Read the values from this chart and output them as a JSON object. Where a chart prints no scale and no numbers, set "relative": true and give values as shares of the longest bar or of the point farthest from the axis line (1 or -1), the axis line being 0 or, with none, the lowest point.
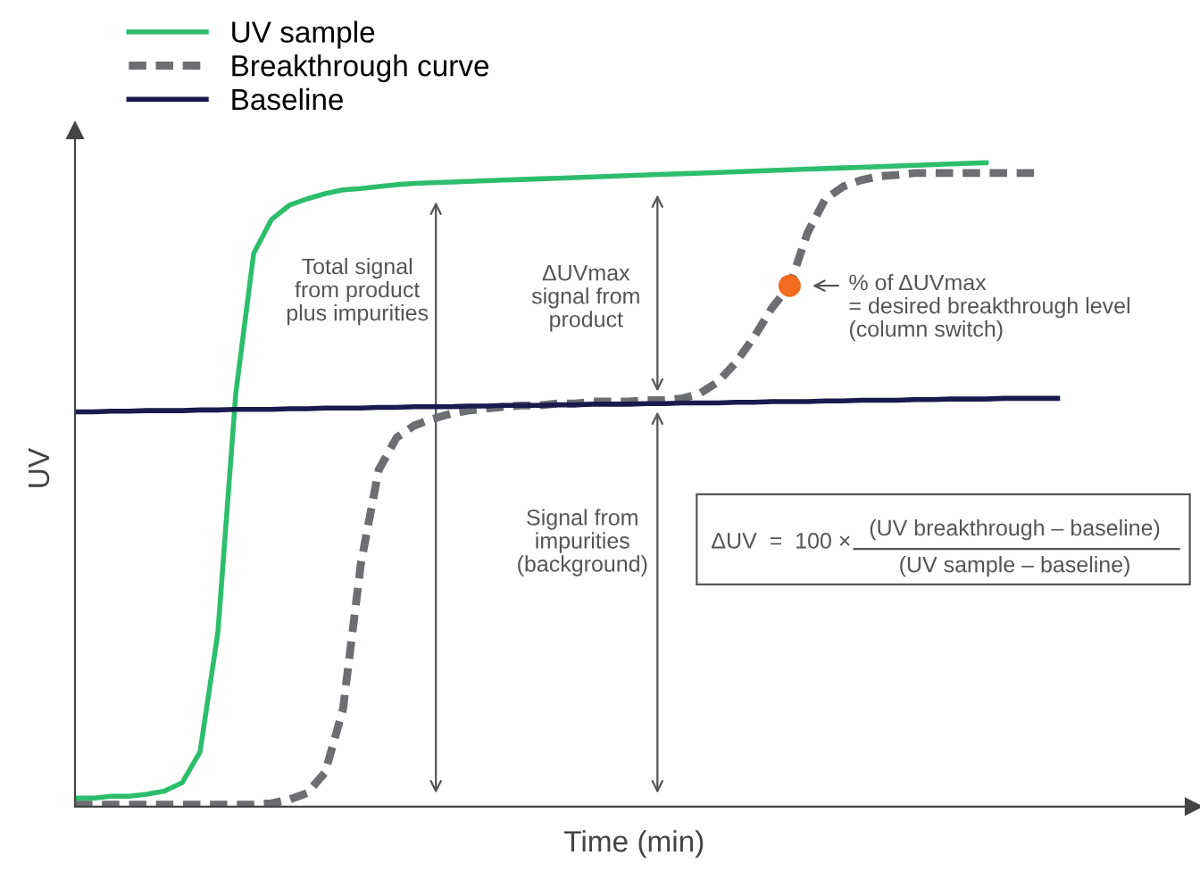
{
  "chart_data": {
    "type": "line",
    "relative": true,
    "xlabel": "Time (min)",
    "ylabel": "UV",
    "legend": "top left",
    "grid": false,
    "marker": "none",
    "categories": [
      null,
      null,
      null,
      null,
      null,
      null,
      null,
      null,
      null,
      null,
      null,
      null,
      null,
      null,
      null,
      null,
      null,
      null,
      null,
      null,
      null,
      null,
      null,
      null,
      null,
      null,
      null,
      null,
      null,
      null,
      null,
      null,
      null,
      null,
      null,
      null,
      null,
      null,
      null,
      null,
      null,
      null,
      null,
      null,
      null,
      null,
      null,
      null,
      null,
      null,
      null,
      null,
      null,
      null,
      null,
      null,
      null,
      null,
      null,
      null,
      null,
      null,
      null
    ],
    "series": [
      {
        "name": "UV sample",
        "color": "#2dbe6c",
        "line_style": "solid",
        "values": [
          0.013,
          0.013,
          0.016,
          0.016,
          0.019,
          0.024,
          0.037,
          0.085,
          0.271,
          0.642,
          0.859,
          0.912,
          0.934,
          0.944,
          0.952,
          0.958,
          0.96,
          0.963,
          0.966,
          0.968,
          0.969,
          0.97,
          0.971,
          0.972,
          0.973,
          0.974,
          0.975,
          0.976,
          0.977,
          0.978,
          0.979,
          0.98,
          0.981,
          0.982,
          0.983,
          0.984,
          0.985,
          0.986,
          0.987,
          0.988,
          0.989,
          0.99,
          0.991,
          0.992,
          0.993,
          0.994,
          0.995,
          0.996,
          0.997,
          0.998,
          0.999,
          1.0,
          null,
          null,
          null,
          null,
          null,
          null,
          null,
          null,
          null,
          null,
          null
        ]
      },
      {
        "name": "Breakthrough curve",
        "color": "#6d6e71",
        "line_style": "dashed",
        "values": [
          0.003,
          0.003,
          0.003,
          0.003,
          0.003,
          0.003,
          0.003,
          0.003,
          0.003,
          0.003,
          0.003,
          0.005,
          0.011,
          0.021,
          0.053,
          0.151,
          0.377,
          0.523,
          0.573,
          0.592,
          0.602,
          0.61,
          0.615,
          0.618,
          0.621,
          0.623,
          0.623,
          0.626,
          0.626,
          0.629,
          0.629,
          0.629,
          0.631,
          0.631,
          0.634,
          0.642,
          0.66,
          0.69,
          0.729,
          0.774,
          0.809,
          0.891,
          0.944,
          0.963,
          0.973,
          0.979,
          0.981,
          0.984,
          0.984,
          0.984,
          0.984,
          0.984,
          0.984,
          0.984,
          0.984,
          null,
          null,
          null,
          null,
          null,
          null,
          null,
          null
        ]
      },
      {
        "name": "Baseline",
        "color": "#1a1a4e",
        "line_style": "solid",
        "values": [
          0.613,
          0.613,
          0.614,
          0.614,
          0.615,
          0.615,
          0.615,
          0.616,
          0.616,
          0.617,
          0.617,
          0.617,
          0.618,
          0.618,
          0.619,
          0.619,
          0.619,
          0.62,
          0.62,
          0.621,
          0.621,
          0.621,
          0.622,
          0.622,
          0.623,
          0.623,
          0.623,
          0.624,
          0.624,
          0.625,
          0.625,
          0.625,
          0.626,
          0.626,
          0.627,
          0.627,
          0.627,
          0.628,
          0.628,
          0.629,
          0.629,
          0.629,
          0.63,
          0.63,
          0.631,
          0.631,
          0.631,
          0.632,
          0.632,
          0.633,
          0.633,
          0.633,
          0.634,
          0.634,
          0.634,
          0.634,
          null,
          null,
          null,
          null,
          null,
          null,
          null
        ]
      }
    ],
    "annotations": [
      "Total signal\nfrom product\nplus impurities",
      "ΔUVmax\nsignal from\nproduct",
      "Signal from\nimpurities\n(background)",
      "% of ΔUVmax\n= desired breakthrough level\n(column switch)",
      "ΔUV  =  100 ×",
      "(UV breakthrough – baseline)",
      "(UV sample – baseline)"
    ]
  }
}
